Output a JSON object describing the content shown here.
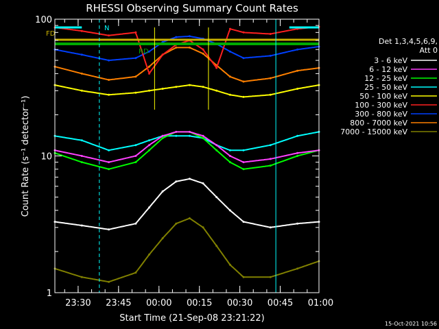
{
  "chart_data": {
    "type": "line",
    "title": "RHESSI Observing Summary Count Rates",
    "xlabel": "Start Time (21-Sep-08 23:21:22)",
    "ylabel": "Count Rate (s⁻¹ detector⁻¹)",
    "yscale": "log",
    "xlim_minutes": [
      0,
      98
    ],
    "ylim": [
      1,
      100
    ],
    "x_ticks": [
      {
        "label": "23:30",
        "min": 8.63
      },
      {
        "label": "23:45",
        "min": 23.63
      },
      {
        "label": "00:00",
        "min": 38.63
      },
      {
        "label": "00:15",
        "min": 53.63
      },
      {
        "label": "00:30",
        "min": 68.63
      },
      {
        "label": "00:45",
        "min": 83.63
      },
      {
        "label": "01:00",
        "min": 98.63
      }
    ],
    "y_ticks": [
      {
        "label": "1",
        "value": 1
      },
      {
        "label": "10",
        "value": 10
      },
      {
        "label": "100",
        "value": 100
      }
    ],
    "legend": {
      "header": [
        "Det 1,3,4,5,6,9,",
        "Att 0"
      ],
      "placement": "top-right outside plot"
    },
    "flags": [
      {
        "label": "N",
        "color": "#00ffff"
      },
      {
        "label": "FD",
        "color": "#c8b000"
      },
      {
        "label": "RD",
        "color": "#00aa00"
      }
    ],
    "series": [
      {
        "name": "3 - 6 keV",
        "color": "#ffffff",
        "x": [
          0,
          10,
          20,
          30,
          35,
          40,
          45,
          50,
          55,
          60,
          65,
          70,
          80,
          90,
          98
        ],
        "values": [
          3.3,
          3.1,
          2.9,
          3.2,
          4.2,
          5.5,
          6.5,
          6.8,
          6.3,
          5.0,
          4.0,
          3.3,
          3.0,
          3.2,
          3.3
        ]
      },
      {
        "name": "6 - 12 keV",
        "color": "#ff40ff",
        "x": [
          0,
          10,
          20,
          30,
          35,
          40,
          45,
          50,
          55,
          60,
          65,
          70,
          80,
          90,
          98
        ],
        "values": [
          11,
          10,
          9,
          10,
          12,
          14,
          15,
          15,
          14,
          12,
          10,
          9,
          9.5,
          10.5,
          11
        ]
      },
      {
        "name": "12 - 25 keV",
        "color": "#00ff00",
        "x": [
          0,
          10,
          20,
          30,
          35,
          40,
          45,
          50,
          55,
          60,
          65,
          70,
          80,
          90,
          98
        ],
        "values": [
          10.5,
          9,
          8,
          9,
          11,
          13.5,
          15,
          15,
          13.5,
          11,
          9,
          8,
          8.5,
          10,
          11
        ]
      },
      {
        "name": "25 - 50 keV",
        "color": "#00ffff",
        "x": [
          0,
          10,
          20,
          30,
          35,
          40,
          45,
          50,
          55,
          60,
          65,
          70,
          80,
          90,
          98
        ],
        "values": [
          14,
          13,
          11,
          12,
          13,
          14,
          14,
          14,
          13.5,
          12,
          11,
          11,
          12,
          14,
          15
        ]
      },
      {
        "name": "50 - 100 keV",
        "color": "#ffff00",
        "x": [
          0,
          10,
          20,
          30,
          35,
          40,
          45,
          50,
          55,
          60,
          65,
          70,
          80,
          90,
          98
        ],
        "values": [
          33,
          30,
          28,
          29,
          30,
          31,
          32,
          33,
          32,
          30,
          28,
          27,
          28,
          31,
          33
        ]
      },
      {
        "name": "100 - 300 keV",
        "color": "#ff2020",
        "x": [
          0,
          10,
          20,
          30,
          35,
          40,
          45,
          50,
          55,
          60,
          65,
          70,
          80,
          90,
          98
        ],
        "values": [
          87,
          82,
          76,
          80,
          40,
          55,
          65,
          70,
          60,
          44,
          85,
          80,
          78,
          85,
          88
        ]
      },
      {
        "name": "300 - 800 keV",
        "color": "#0040ff",
        "x": [
          0,
          10,
          20,
          30,
          35,
          40,
          45,
          50,
          55,
          60,
          65,
          70,
          80,
          90,
          98
        ],
        "values": [
          60,
          55,
          50,
          52,
          58,
          68,
          74,
          75,
          72,
          66,
          58,
          52,
          54,
          60,
          63
        ]
      },
      {
        "name": "800 - 7000 keV",
        "color": "#ff8000",
        "x": [
          0,
          10,
          20,
          30,
          35,
          40,
          45,
          50,
          55,
          60,
          65,
          70,
          80,
          90,
          98
        ],
        "values": [
          45,
          40,
          36,
          38,
          45,
          55,
          62,
          62,
          56,
          46,
          38,
          35,
          37,
          42,
          44
        ]
      },
      {
        "name": "7000 - 15000 keV",
        "color": "#808000",
        "x": [
          0,
          10,
          20,
          30,
          35,
          40,
          45,
          50,
          55,
          60,
          65,
          70,
          80,
          90,
          98
        ],
        "values": [
          1.5,
          1.3,
          1.2,
          1.4,
          1.9,
          2.5,
          3.2,
          3.5,
          3.0,
          2.2,
          1.6,
          1.3,
          1.3,
          1.5,
          1.7
        ]
      }
    ],
    "timestamp": "15-Oct-2021 10:56"
  }
}
